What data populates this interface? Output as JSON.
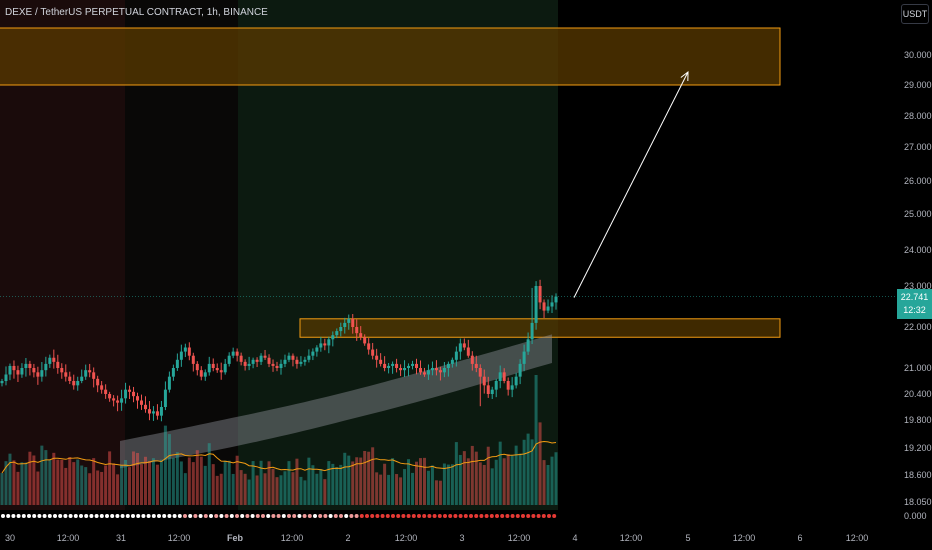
{
  "header": {
    "title": "DEXE / TetherUS PERPETUAL CONTRACT, 1h, BINANCE",
    "currency": "USDT"
  },
  "last_price": {
    "value": "22.741",
    "countdown": "12:32"
  },
  "chart_data": {
    "type": "candlestick",
    "title": "DEXE / TetherUS PERPETUAL CONTRACT, 1h, BINANCE",
    "y_ticks": [
      30.0,
      29.0,
      28.0,
      27.0,
      26.0,
      25.0,
      24.0,
      23.0,
      22.0,
      21.0,
      20.4,
      19.8,
      19.2,
      18.6,
      18.05
    ],
    "y_tick_labels": [
      "30.000",
      "29.000",
      "28.000",
      "27.000",
      "26.000",
      "25.000",
      "24.000",
      "23.000",
      "22.000",
      "21.000",
      "20.400",
      "19.800",
      "19.200",
      "18.600",
      "18.050"
    ],
    "volume_axis_label": "0.000",
    "x_tick_labels": [
      "30",
      "12:00",
      "31",
      "12:00",
      "Feb",
      "12:00",
      "2",
      "12:00",
      "3",
      "12:00",
      "4",
      "12:00",
      "5",
      "12:00",
      "6",
      "12:00"
    ],
    "zones": [
      {
        "kind": "supply-target",
        "low": 29.0,
        "high": 30.9
      },
      {
        "kind": "support",
        "low": 21.75,
        "high": 22.2
      }
    ],
    "arrow": {
      "from_price": 22.741,
      "to_price": 29.4
    },
    "close_series": [
      20.7,
      20.85,
      21.05,
      20.95,
      20.85,
      21.0,
      21.1,
      21.0,
      20.9,
      20.8,
      20.95,
      21.1,
      21.25,
      21.15,
      21.0,
      20.9,
      20.8,
      20.7,
      20.6,
      20.7,
      20.8,
      20.95,
      20.9,
      20.75,
      20.6,
      20.5,
      20.4,
      20.3,
      20.25,
      20.2,
      20.3,
      20.5,
      20.45,
      20.35,
      20.25,
      20.15,
      20.05,
      19.95,
      20.0,
      19.9,
      20.1,
      20.5,
      20.8,
      21.0,
      21.2,
      21.4,
      21.5,
      21.3,
      21.1,
      20.95,
      20.8,
      20.9,
      21.1,
      21.0,
      20.95,
      20.9,
      21.1,
      21.3,
      21.4,
      21.3,
      21.15,
      21.05,
      21.1,
      21.2,
      21.15,
      21.3,
      21.25,
      21.1,
      21.05,
      21.0,
      21.1,
      21.2,
      21.3,
      21.2,
      21.1,
      21.15,
      21.2,
      21.3,
      21.4,
      21.5,
      21.6,
      21.55,
      21.7,
      21.8,
      21.9,
      22.0,
      22.1,
      22.2,
      22.0,
      21.85,
      21.75,
      21.6,
      21.45,
      21.3,
      21.2,
      21.1,
      21.0,
      21.05,
      21.1,
      21.0,
      20.95,
      21.0,
      21.05,
      21.1,
      21.0,
      20.9,
      20.85,
      20.95,
      21.0,
      20.95,
      20.9,
      21.0,
      21.1,
      21.2,
      21.4,
      21.6,
      21.5,
      21.3,
      21.1,
      21.0,
      20.8,
      20.6,
      20.4,
      20.5,
      20.7,
      20.9,
      20.7,
      20.5,
      20.6,
      20.8,
      21.1,
      21.4,
      21.7,
      22.1,
      23.0,
      22.6,
      22.4,
      22.5,
      22.6,
      22.741
    ]
  }
}
